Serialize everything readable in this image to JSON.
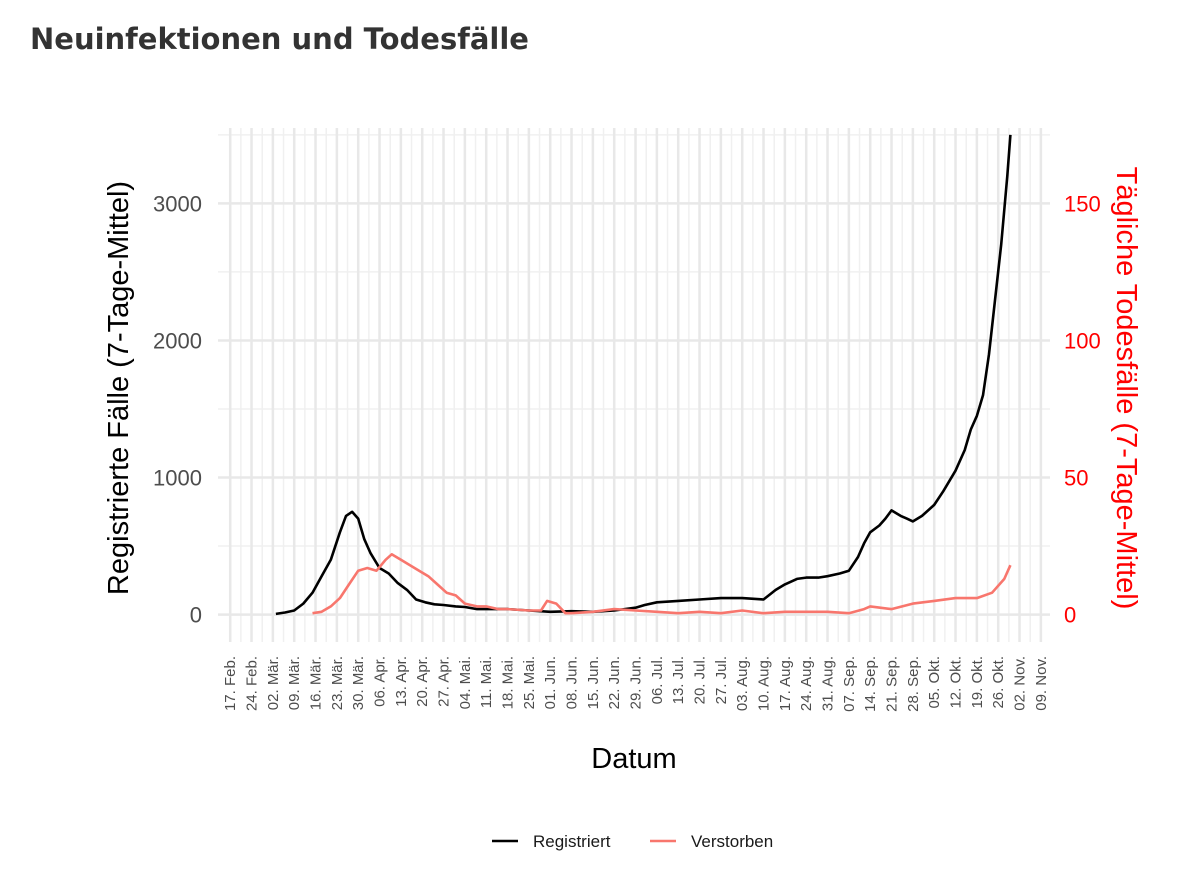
{
  "header": {
    "title": "Neuinfektionen und Todesfälle"
  },
  "chart_data": {
    "type": "line",
    "title": "Neuinfektionen und Todesfälle",
    "xlabel": "Datum",
    "ylabel": "Registrierte Fälle (7-Tage-Mittel)",
    "y2label": "Tägliche Todesfälle (7-Tage-Mittel)",
    "ylim": [
      -200,
      3550
    ],
    "y2lim": [
      -10,
      177.5
    ],
    "yticks": [
      0,
      1000,
      2000,
      3000
    ],
    "y2ticks": [
      0,
      50,
      100,
      150
    ],
    "grid": true,
    "legend_position": "bottom",
    "x_ticks": [
      "17. Feb.",
      "24. Feb.",
      "02. Mär.",
      "09. Mär.",
      "16. Mär.",
      "23. Mär.",
      "30. Mär.",
      "06. Apr.",
      "13. Apr.",
      "20. Apr.",
      "27. Apr.",
      "04. Mai.",
      "11. Mai.",
      "18. Mai.",
      "25. Mai.",
      "01. Jun.",
      "08. Jun.",
      "15. Jun.",
      "22. Jun.",
      "29. Jun.",
      "06. Jul.",
      "13. Jul.",
      "20. Jul.",
      "27. Jul.",
      "03. Aug.",
      "10. Aug.",
      "17. Aug.",
      "24. Aug.",
      "31. Aug.",
      "07. Sep.",
      "14. Sep.",
      "21. Sep.",
      "28. Sep.",
      "05. Okt.",
      "12. Okt.",
      "19. Okt.",
      "26. Okt.",
      "02. Nov.",
      "09. Nov."
    ],
    "series": [
      {
        "name": "Registriert",
        "color": "#000000",
        "axis": "left",
        "x": [
          "2020-03-03",
          "2020-03-06",
          "2020-03-09",
          "2020-03-12",
          "2020-03-15",
          "2020-03-18",
          "2020-03-21",
          "2020-03-24",
          "2020-03-26",
          "2020-03-28",
          "2020-03-30",
          "2020-04-01",
          "2020-04-03",
          "2020-04-06",
          "2020-04-09",
          "2020-04-12",
          "2020-04-15",
          "2020-04-18",
          "2020-04-21",
          "2020-04-24",
          "2020-04-27",
          "2020-05-01",
          "2020-05-04",
          "2020-05-08",
          "2020-05-11",
          "2020-05-18",
          "2020-05-25",
          "2020-06-01",
          "2020-06-08",
          "2020-06-15",
          "2020-06-22",
          "2020-06-29",
          "2020-07-02",
          "2020-07-06",
          "2020-07-13",
          "2020-07-20",
          "2020-07-27",
          "2020-08-03",
          "2020-08-10",
          "2020-08-14",
          "2020-08-17",
          "2020-08-21",
          "2020-08-24",
          "2020-08-28",
          "2020-08-31",
          "2020-09-04",
          "2020-09-07",
          "2020-09-10",
          "2020-09-12",
          "2020-09-14",
          "2020-09-17",
          "2020-09-19",
          "2020-09-21",
          "2020-09-24",
          "2020-09-26",
          "2020-09-28",
          "2020-10-01",
          "2020-10-05",
          "2020-10-08",
          "2020-10-12",
          "2020-10-15",
          "2020-10-17",
          "2020-10-19",
          "2020-10-21",
          "2020-10-23",
          "2020-10-25",
          "2020-10-27",
          "2020-10-29",
          "2020-10-30"
        ],
        "values": [
          5,
          15,
          30,
          80,
          160,
          280,
          400,
          600,
          720,
          750,
          700,
          550,
          450,
          340,
          300,
          230,
          180,
          110,
          90,
          75,
          70,
          60,
          55,
          40,
          40,
          40,
          30,
          20,
          25,
          20,
          30,
          50,
          70,
          90,
          100,
          110,
          120,
          120,
          110,
          180,
          220,
          260,
          270,
          270,
          280,
          300,
          320,
          420,
          520,
          600,
          650,
          700,
          760,
          720,
          700,
          680,
          720,
          800,
          900,
          1050,
          1200,
          1350,
          1450,
          1600,
          1900,
          2300,
          2700,
          3200,
          3500
        ]
      },
      {
        "name": "Verstorben",
        "color": "#f8766d",
        "axis": "right",
        "x": [
          "2020-03-15",
          "2020-03-18",
          "2020-03-21",
          "2020-03-24",
          "2020-03-27",
          "2020-03-30",
          "2020-04-02",
          "2020-04-05",
          "2020-04-08",
          "2020-04-10",
          "2020-04-13",
          "2020-04-16",
          "2020-04-19",
          "2020-04-22",
          "2020-04-25",
          "2020-04-28",
          "2020-05-01",
          "2020-05-04",
          "2020-05-08",
          "2020-05-11",
          "2020-05-15",
          "2020-05-18",
          "2020-05-25",
          "2020-05-29",
          "2020-05-31",
          "2020-06-03",
          "2020-06-06",
          "2020-06-08",
          "2020-06-15",
          "2020-06-22",
          "2020-06-29",
          "2020-07-06",
          "2020-07-13",
          "2020-07-20",
          "2020-07-27",
          "2020-08-03",
          "2020-08-10",
          "2020-08-17",
          "2020-08-24",
          "2020-08-31",
          "2020-09-07",
          "2020-09-12",
          "2020-09-14",
          "2020-09-21",
          "2020-09-28",
          "2020-10-05",
          "2020-10-12",
          "2020-10-19",
          "2020-10-24",
          "2020-10-28",
          "2020-10-30"
        ],
        "values": [
          0.5,
          1,
          3,
          6,
          11,
          16,
          17,
          16,
          20,
          22,
          20,
          18,
          16,
          14,
          11,
          8,
          7,
          4,
          3,
          3,
          2,
          2,
          1.5,
          1.5,
          5,
          4,
          0.5,
          0.5,
          1,
          2,
          1.5,
          1,
          0.5,
          1,
          0.5,
          1.5,
          0.5,
          1,
          1,
          1,
          0.5,
          2,
          3,
          2,
          4,
          5,
          6,
          6,
          8,
          13,
          18
        ]
      }
    ]
  },
  "legend": {
    "items": [
      "Registriert",
      "Verstorben"
    ]
  }
}
